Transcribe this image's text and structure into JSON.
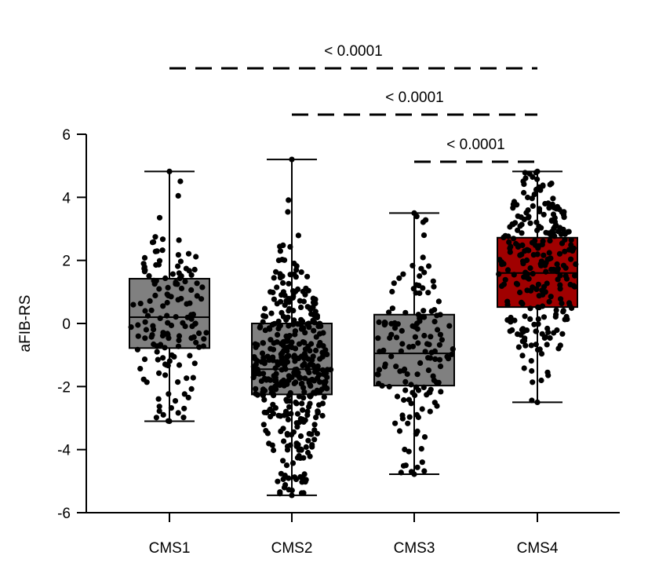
{
  "chart_data": {
    "type": "box",
    "title": "",
    "xlabel": "",
    "ylabel": "aFIB-RS",
    "ylim": [
      -6,
      6
    ],
    "yticks": [
      6,
      4,
      2,
      0,
      -2,
      -4,
      -6
    ],
    "ytick_labels": [
      "6",
      "4",
      "2",
      "0",
      "-2",
      "-4",
      "-6"
    ],
    "grid": false,
    "legend": "none",
    "categories": [
      "CMS1",
      "CMS2",
      "CMS3",
      "CMS4"
    ],
    "boxes": [
      {
        "name": "CMS1",
        "min": -3.1,
        "q1": -0.78,
        "median": 0.2,
        "q3": 1.42,
        "max": 4.82,
        "fill": "#808080",
        "n_points": 150
      },
      {
        "name": "CMS2",
        "min": -5.45,
        "q1": -2.25,
        "median": -1.45,
        "q3": 0.0,
        "max": 5.2,
        "fill": "#808080",
        "n_points": 420
      },
      {
        "name": "CMS3",
        "min": -4.78,
        "q1": -1.97,
        "median": -0.95,
        "q3": 0.28,
        "max": 3.5,
        "fill": "#808080",
        "n_points": 150
      },
      {
        "name": "CMS4",
        "min": -2.5,
        "q1": 0.52,
        "median": 1.6,
        "q3": 2.72,
        "max": 4.82,
        "fill": "#a00000",
        "n_points": 260
      }
    ],
    "comparisons": [
      {
        "from": "CMS1",
        "to": "CMS4",
        "label": "< 0.0001"
      },
      {
        "from": "CMS2",
        "to": "CMS4",
        "label": "< 0.0001"
      },
      {
        "from": "CMS3",
        "to": "CMS4",
        "label": "< 0.0001"
      }
    ]
  }
}
